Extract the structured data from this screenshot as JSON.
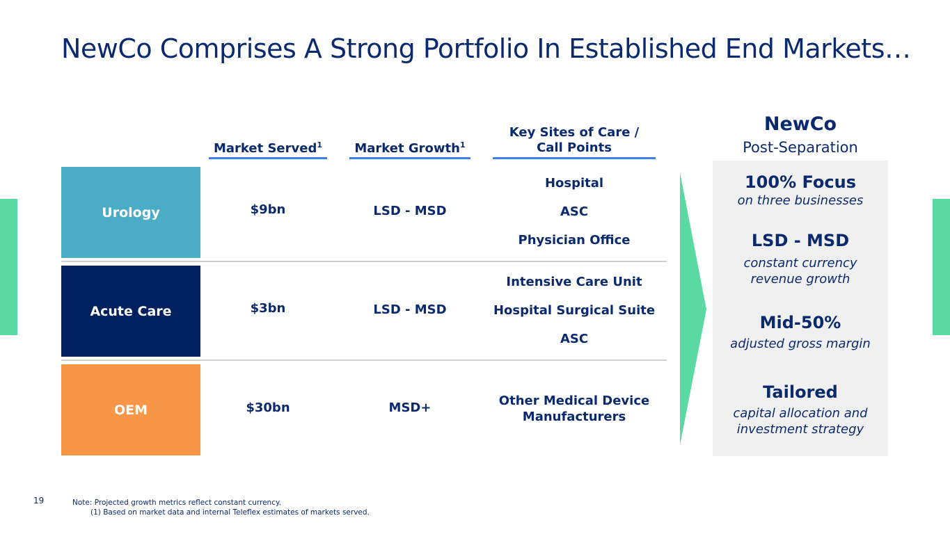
{
  "title": "NewCo Comprises A Strong Portfolio In Established End Markets…",
  "columns": {
    "market_served": "Market Served",
    "market_growth": "Market Growth",
    "sites_line1": "Key Sites of Care /",
    "sites_line2": "Call Points",
    "footnote_ref": "1"
  },
  "segments": [
    {
      "name": "Urology",
      "color": "#4bacc6",
      "market": "$9bn",
      "growth": "LSD - MSD",
      "sites": [
        "Hospital",
        "ASC",
        "Physician Office"
      ]
    },
    {
      "name": "Acute Care",
      "color": "#002060",
      "market": "$3bn",
      "growth": "LSD - MSD",
      "sites": [
        "Intensive Care Unit",
        "Hospital Surgical Suite",
        "ASC"
      ]
    },
    {
      "name": "OEM",
      "color": "#f79646",
      "market": "$30bn",
      "growth": "MSD+",
      "sites": [
        "Other Medical Device",
        "Manufacturers"
      ]
    }
  ],
  "newco": {
    "title": "NewCo",
    "subtitle": "Post-Separation",
    "metrics": [
      {
        "value": "100% Focus",
        "desc": "on three businesses"
      },
      {
        "value": "LSD - MSD",
        "desc": "constant currency revenue growth"
      },
      {
        "value": "Mid-50%",
        "desc": "adjusted gross margin"
      },
      {
        "value": "Tailored",
        "desc": "capital allocation and investment strategy"
      }
    ]
  },
  "colors": {
    "accent_green": "#5ad9a3",
    "navy": "#0b2a6e",
    "header_line": "#3f7ee8"
  },
  "page_number": "19",
  "footnote": {
    "note": "Note: Projected growth metrics reflect constant currency.",
    "item1": "(1)    Based on market data and internal Teleflex estimates of markets served."
  }
}
